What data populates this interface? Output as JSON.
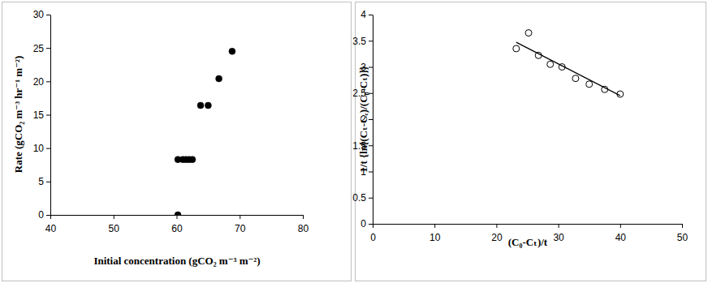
{
  "chart_data": [
    {
      "type": "scatter",
      "x_label": "Initial concentration (gCO₂ m⁻³ m⁻²)",
      "y_label": "Rate (gCO₂ m⁻³ hr⁻¹ m⁻²)",
      "xlim": [
        40,
        80
      ],
      "xticks": [
        40,
        50,
        60,
        70,
        80
      ],
      "ylim": [
        0,
        30
      ],
      "yticks": [
        0,
        5,
        10,
        15,
        20,
        25,
        30
      ],
      "grid": false,
      "series": [
        {
          "color": "#000000",
          "marker": "circle",
          "x": [
            60.2,
            60.2,
            61.0,
            61.5,
            62.0,
            62.5,
            63.8,
            65.0,
            66.7,
            68.8
          ],
          "values": [
            0,
            8.3,
            8.3,
            8.3,
            8.3,
            8.3,
            16.4,
            16.4,
            20.4,
            24.5
          ]
        }
      ]
    },
    {
      "type": "scatter",
      "x_label": "(C₀-Cₜ)/t",
      "y_label": "1/t {ln[(Cₜ-Cₑ)/(C₀-Cₜ)]}",
      "xlim": [
        0,
        50
      ],
      "xticks": [
        0,
        10,
        20,
        30,
        40,
        50
      ],
      "ylim": [
        0,
        4
      ],
      "yticks": [
        0,
        0.5,
        1,
        1.5,
        2,
        2.5,
        3,
        3.5,
        4
      ],
      "grid": false,
      "series": [
        {
          "color": "#000000",
          "marker": "circle-open",
          "x": [
            23.2,
            25.2,
            26.8,
            28.7,
            30.6,
            32.8,
            35.0,
            37.5,
            40.0
          ],
          "values": [
            3.35,
            3.65,
            3.22,
            3.05,
            3.0,
            2.78,
            2.67,
            2.57,
            2.48
          ]
        },
        {
          "type": "line",
          "color": "#000000",
          "line_style": "solid",
          "x": [
            23.2,
            40.0
          ],
          "values": [
            3.47,
            2.45
          ]
        }
      ]
    }
  ]
}
